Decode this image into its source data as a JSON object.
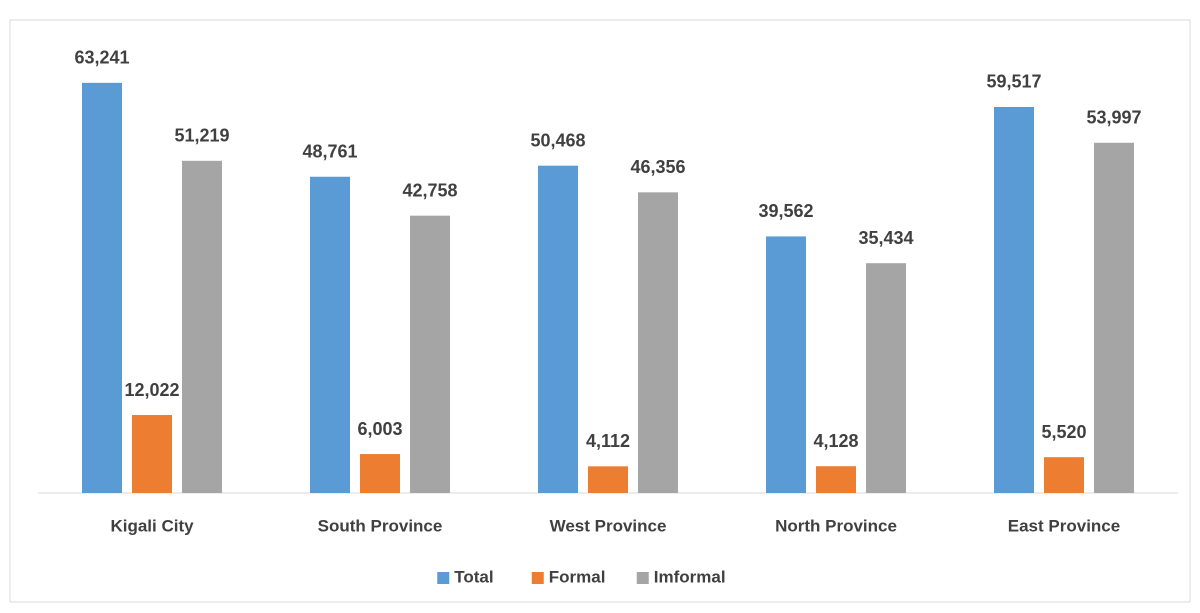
{
  "chart_data": {
    "type": "bar",
    "categories": [
      "Kigali City",
      "South Province",
      "West Province",
      "North Province",
      "East Province"
    ],
    "series": [
      {
        "name": "Total",
        "color": "#5b9bd5",
        "values": [
          63241,
          48761,
          50468,
          39562,
          59517
        ],
        "value_labels": [
          "63,241",
          "48,761",
          "50,468",
          "39,562",
          "59,517"
        ]
      },
      {
        "name": "Formal",
        "color": "#ed7d31",
        "values": [
          12022,
          6003,
          4112,
          4128,
          5520
        ],
        "value_labels": [
          "12,022",
          "6,003",
          "4,112",
          "4,128",
          "5,520"
        ]
      },
      {
        "name": "Imformal",
        "color": "#a5a5a5",
        "values": [
          51219,
          42758,
          46356,
          35434,
          53997
        ],
        "value_labels": [
          "51,219",
          "42,758",
          "46,356",
          "35,434",
          "53,997"
        ]
      }
    ],
    "ylim": [
      0,
      70000
    ],
    "legend": "bottom"
  }
}
